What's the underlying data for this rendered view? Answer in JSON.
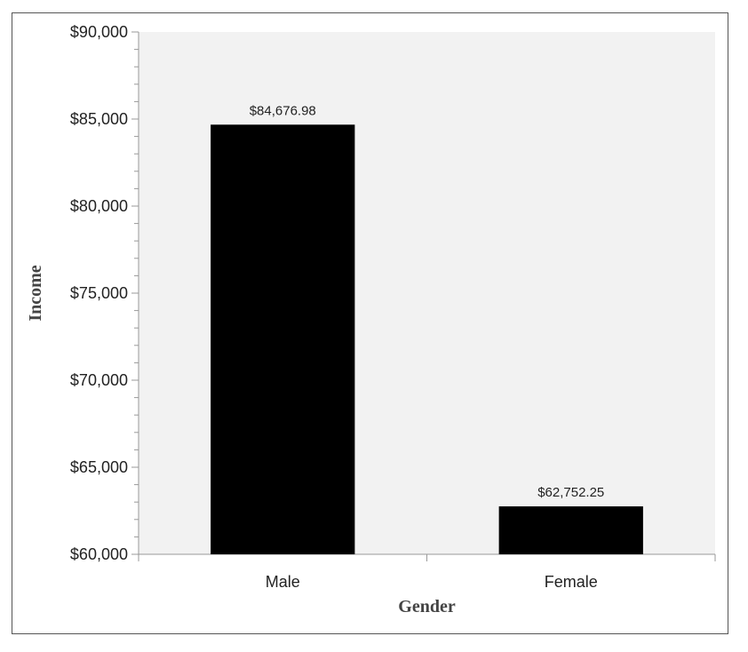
{
  "chart_data": {
    "type": "bar",
    "categories": [
      "Male",
      "Female"
    ],
    "values": [
      84676.98,
      62752.25
    ],
    "data_labels": [
      "$84,676.98",
      "$62,752.25"
    ],
    "xlabel": "Gender",
    "ylabel": "Income",
    "ylim": [
      60000,
      90000
    ],
    "y_ticks": [
      60000,
      65000,
      70000,
      75000,
      80000,
      85000,
      90000
    ],
    "y_tick_labels": [
      "$60,000",
      "$65,000",
      "$70,000",
      "$75,000",
      "$80,000",
      "$85,000",
      "$90,000"
    ],
    "grid": false,
    "legend": "none",
    "bar_color": "#000000",
    "plot_background": "#f2f2f2"
  }
}
